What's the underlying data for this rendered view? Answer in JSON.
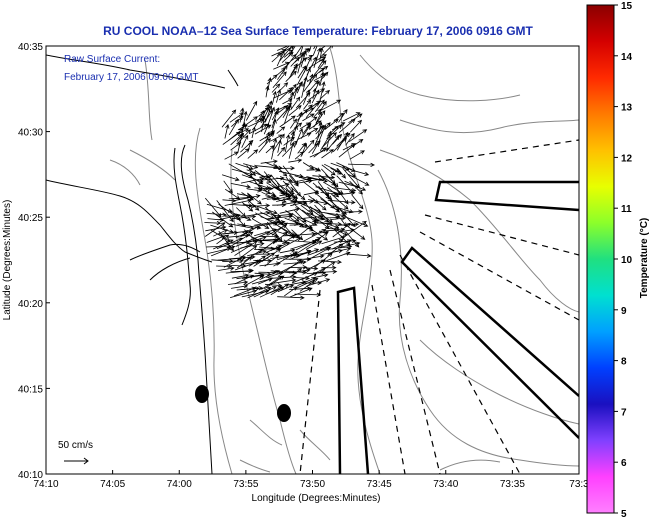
{
  "title": "RU COOL  NOAA–12  Sea Surface Temperature:  February 17, 2006 0916 GMT",
  "legend": {
    "line1": "Raw Surface Current:",
    "line2": "February 17, 2006 09:00 GMT",
    "scale_label": "50 cm/s"
  },
  "axes": {
    "xlabel": "Longitude (Degrees:Minutes)",
    "ylabel": "Latitude (Degrees:Minutes)",
    "xticks": [
      "74:10",
      "74:05",
      "74:00",
      "73:55",
      "73:50",
      "73:45",
      "73:40",
      "73:35",
      "73:3"
    ],
    "yticks": [
      "40:35",
      "40:30",
      "40:25",
      "40:20",
      "40:15",
      "40:10"
    ]
  },
  "colorbar": {
    "label": "Temperature (°C)",
    "ticks": [
      "15",
      "14",
      "13",
      "12",
      "11",
      "10",
      "9",
      "8",
      "7",
      "6",
      "5"
    ],
    "colors": [
      "#8b0000",
      "#d40000",
      "#ff2a00",
      "#ff7a00",
      "#ffc000",
      "#e8ff00",
      "#8cff2a",
      "#20e080",
      "#00e0d0",
      "#00a0ff",
      "#0040ff",
      "#1a10c0",
      "#8040ff",
      "#ff40ff",
      "#ff80ff"
    ]
  },
  "map_colors": {
    "coast": "#000000",
    "contours": "#888888",
    "vectors": "#000000"
  }
}
